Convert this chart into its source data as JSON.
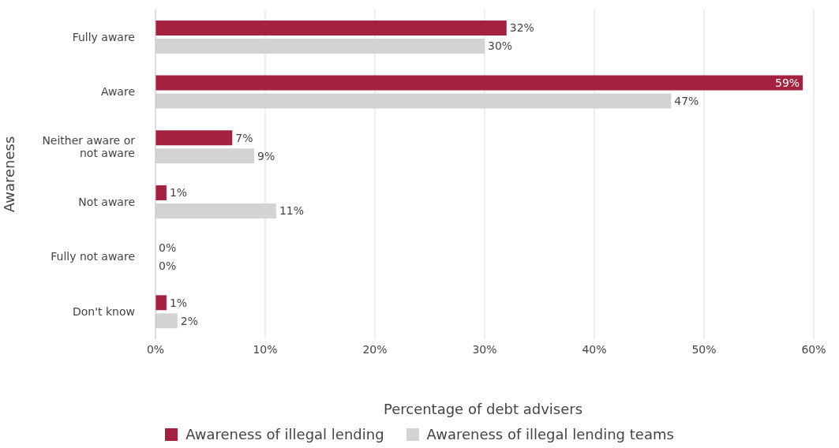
{
  "chart_data": {
    "type": "bar",
    "orientation": "horizontal",
    "xlabel": "Percentage of debt advisers",
    "ylabel": "Awareness",
    "categories": [
      "Fully aware",
      "Aware",
      "Neither aware or not aware",
      "Not aware",
      "Fully not aware",
      "Don't know"
    ],
    "series": [
      {
        "name": "Awareness of illegal lending",
        "color": "#a4213f",
        "values": [
          32,
          59,
          7,
          1,
          0,
          1
        ],
        "value_labels": [
          "32%",
          "59%",
          "7%",
          "1%",
          "0%",
          "1%"
        ]
      },
      {
        "name": "Awareness of illegal lending teams",
        "color": "#d3d3d3",
        "values": [
          30,
          47,
          9,
          11,
          0,
          2
        ],
        "value_labels": [
          "30%",
          "47%",
          "9%",
          "11%",
          "0%",
          "2%"
        ]
      }
    ],
    "xlim": [
      0,
      60
    ],
    "xticks": [
      {
        "value": 0,
        "label": "0%"
      },
      {
        "value": 10,
        "label": "10%"
      },
      {
        "value": 20,
        "label": "20%"
      },
      {
        "value": 30,
        "label": "30%"
      },
      {
        "value": 40,
        "label": "40%"
      },
      {
        "value": 50,
        "label": "50%"
      },
      {
        "value": 60,
        "label": "60%"
      }
    ],
    "grid": "x",
    "legend": "bottom"
  }
}
